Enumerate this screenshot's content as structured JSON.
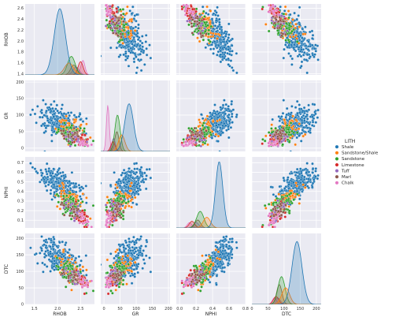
{
  "chart_data": {
    "type": "pairplot",
    "variables": [
      "RHOB",
      "GR",
      "NPHI",
      "DTC"
    ],
    "axis_ranges": {
      "RHOB": [
        1.3,
        2.8
      ],
      "GR": [
        -10,
        205
      ],
      "NPHI": [
        -0.04,
        0.8
      ],
      "DTC": [
        0,
        215
      ]
    },
    "ticks": {
      "RHOB": {
        "values": [
          1.5,
          2.0,
          2.5
        ],
        "labels": [
          "1.5",
          "2.0",
          "2.5"
        ],
        "row_values": [
          1.4,
          1.6,
          1.8,
          2.0,
          2.2,
          2.4,
          2.6
        ],
        "row_labels": [
          "1.4",
          "1.6",
          "1.8",
          "2.0",
          "2.2",
          "2.4",
          "2.6"
        ],
        "row_range": [
          1.38,
          2.68
        ]
      },
      "GR": {
        "values": [
          0,
          50,
          100,
          150,
          200
        ],
        "labels": [
          "0",
          "50",
          "100",
          "150",
          "200"
        ]
      },
      "NPHI": {
        "values": [
          0.0,
          0.2,
          0.4,
          0.6,
          0.8
        ],
        "labels": [
          "0.0",
          "0.2",
          "0.4",
          "0.6",
          "0.8"
        ],
        "row_values": [
          0.1,
          0.2,
          0.3,
          0.4,
          0.5,
          0.6,
          0.7
        ],
        "row_labels": [
          "0.1",
          "0.2",
          "0.3",
          "0.4",
          "0.5",
          "0.6",
          "0.7"
        ],
        "row_range": [
          0.02,
          0.76
        ]
      },
      "DTC": {
        "values": [
          0,
          50,
          100,
          150,
          200
        ],
        "labels": [
          "0",
          "50",
          "100",
          "150",
          "200"
        ]
      }
    },
    "grid": true,
    "legend": {
      "title": "LITH",
      "placement": "right",
      "entries": [
        {
          "name": "Shale",
          "color": "#1f77b4"
        },
        {
          "name": "Sandstone/Shale",
          "color": "#ff7f0e"
        },
        {
          "name": "Sandstone",
          "color": "#2ca02c"
        },
        {
          "name": "Limestone",
          "color": "#d62728"
        },
        {
          "name": "Tuff",
          "color": "#9467bd"
        },
        {
          "name": "Marl",
          "color": "#8c564b"
        },
        {
          "name": "Chalk",
          "color": "#e377c2"
        }
      ]
    },
    "classes": {
      "Shale": {
        "color": "#1f77b4",
        "RHOB": [
          2.05,
          0.22
        ],
        "GR": [
          78,
          25
        ],
        "NPHI": [
          0.48,
          0.08
        ],
        "DTC": [
          140,
          28
        ]
      },
      "Sandstone/Shale": {
        "color": "#ff7f0e",
        "RHOB": [
          2.25,
          0.18
        ],
        "GR": [
          55,
          18
        ],
        "NPHI": [
          0.33,
          0.08
        ],
        "DTC": [
          105,
          22
        ]
      },
      "Sandstone": {
        "color": "#2ca02c",
        "RHOB": [
          2.3,
          0.15
        ],
        "GR": [
          42,
          15
        ],
        "NPHI": [
          0.25,
          0.08
        ],
        "DTC": [
          92,
          20
        ]
      },
      "Limestone": {
        "color": "#d62728",
        "RHOB": [
          2.5,
          0.1
        ],
        "GR": [
          28,
          12
        ],
        "NPHI": [
          0.15,
          0.06
        ],
        "DTC": [
          75,
          15
        ]
      },
      "Tuff": {
        "color": "#9467bd",
        "RHOB": [
          2.4,
          0.12
        ],
        "GR": [
          30,
          10
        ],
        "NPHI": [
          0.2,
          0.06
        ],
        "DTC": [
          80,
          15
        ]
      },
      "Marl": {
        "color": "#8c564b",
        "RHOB": [
          2.35,
          0.12
        ],
        "GR": [
          40,
          12
        ],
        "NPHI": [
          0.22,
          0.06
        ],
        "DTC": [
          85,
          15
        ]
      },
      "Chalk": {
        "color": "#e377c2",
        "RHOB": [
          2.55,
          0.08
        ],
        "GR": [
          12,
          8
        ],
        "NPHI": [
          0.12,
          0.05
        ],
        "DTC": [
          70,
          12
        ]
      }
    },
    "kde_peaks": {
      "RHOB": {
        "Shale": 1.0,
        "Sandstone/Shale": 0.18,
        "Sandstone": 0.28,
        "Limestone": 0.2,
        "Tuff": 0.12,
        "Marl": 0.15,
        "Chalk": 0.22
      },
      "GR": {
        "Shale": 0.72,
        "Sandstone/Shale": 0.25,
        "Sandstone": 0.55,
        "Limestone": 0.15,
        "Tuff": 0.2,
        "Marl": 0.3,
        "Chalk": 0.7
      },
      "NPHI": {
        "Shale": 1.0,
        "Sandstone/Shale": 0.16,
        "Sandstone": 0.25,
        "Limestone": 0.1,
        "Tuff": 0.08,
        "Marl": 0.12,
        "Chalk": 0.08
      },
      "DTC": {
        "Shale": 0.95,
        "Sandstone/Shale": 0.25,
        "Sandstone": 0.42,
        "Limestone": 0.12,
        "Tuff": 0.1,
        "Marl": 0.3,
        "Chalk": 0.1
      }
    }
  }
}
